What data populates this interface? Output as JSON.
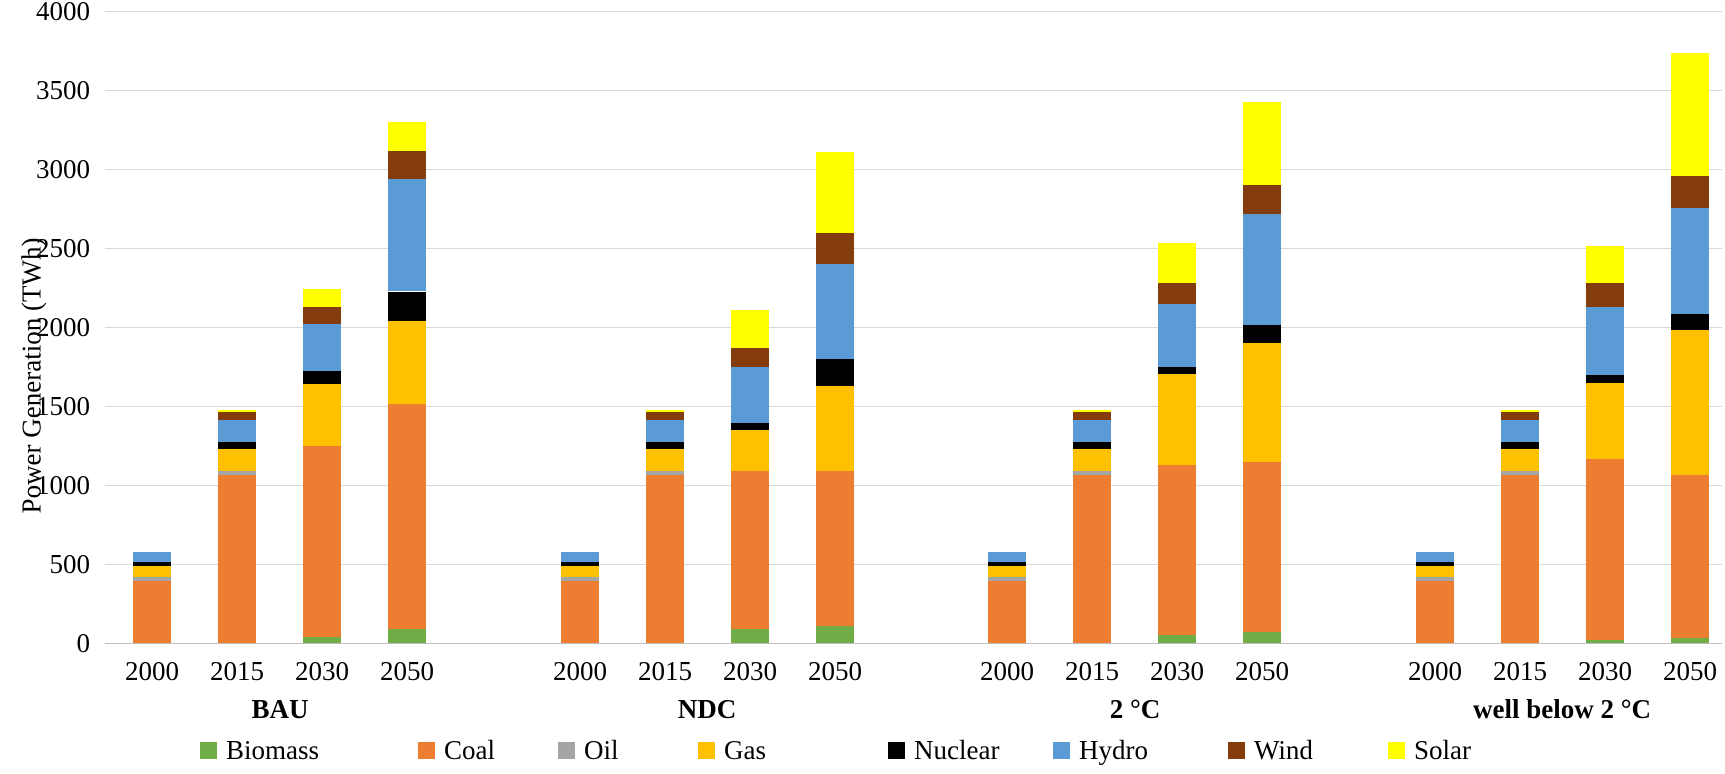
{
  "chart_data": {
    "type": "bar",
    "stacked": true,
    "title": "",
    "xlabel": "",
    "ylabel": "Power Generation (TWh)",
    "ylim": [
      0,
      4000
    ],
    "ytick_interval": 500,
    "yticks": [
      0,
      500,
      1000,
      1500,
      2000,
      2500,
      3000,
      3500,
      4000
    ],
    "grid": true,
    "legend_position": "bottom",
    "years": [
      "2000",
      "2015",
      "2030",
      "2050"
    ],
    "scenarios": [
      "BAU",
      "NDC",
      "2 °C",
      "well below 2  °C"
    ],
    "unit": "TWh",
    "series": [
      {
        "name": "Biomass",
        "color": "#70AD47",
        "values": {
          "BAU": [
            0,
            0,
            40,
            90
          ],
          "NDC": [
            0,
            0,
            90,
            110
          ],
          "2C": [
            0,
            0,
            50,
            70
          ],
          "WB2C": [
            0,
            0,
            20,
            35
          ]
        }
      },
      {
        "name": "Coal",
        "color": "#ED7D31",
        "values": {
          "BAU": [
            395,
            1065,
            1210,
            1420
          ],
          "NDC": [
            395,
            1065,
            1000,
            980
          ],
          "2C": [
            395,
            1065,
            1080,
            1075
          ],
          "WB2C": [
            395,
            1065,
            1145,
            1030
          ]
        }
      },
      {
        "name": "Oil",
        "color": "#A5A5A5",
        "values": {
          "BAU": [
            20,
            25,
            0,
            0
          ],
          "NDC": [
            20,
            25,
            0,
            0
          ],
          "2C": [
            20,
            25,
            0,
            0
          ],
          "WB2C": [
            20,
            25,
            0,
            0
          ]
        }
      },
      {
        "name": "Gas",
        "color": "#FFC000",
        "values": {
          "BAU": [
            70,
            140,
            390,
            530
          ],
          "NDC": [
            70,
            140,
            260,
            535
          ],
          "2C": [
            70,
            140,
            575,
            755
          ],
          "WB2C": [
            70,
            140,
            480,
            915
          ]
        }
      },
      {
        "name": "Nuclear",
        "color": "#000000",
        "values": {
          "BAU": [
            25,
            40,
            80,
            185
          ],
          "NDC": [
            25,
            40,
            45,
            175
          ],
          "2C": [
            25,
            40,
            45,
            115
          ],
          "WB2C": [
            25,
            40,
            50,
            100
          ]
        }
      },
      {
        "name": "Hydro",
        "color": "#5B9BD5",
        "values": {
          "BAU": [
            65,
            140,
            300,
            710
          ],
          "NDC": [
            65,
            140,
            355,
            600
          ],
          "2C": [
            65,
            140,
            395,
            700
          ],
          "WB2C": [
            65,
            140,
            435,
            675
          ]
        }
      },
      {
        "name": "Wind",
        "color": "#843C0C",
        "values": {
          "BAU": [
            0,
            50,
            110,
            180
          ],
          "NDC": [
            0,
            50,
            120,
            195
          ],
          "2C": [
            0,
            50,
            135,
            185
          ],
          "WB2C": [
            0,
            50,
            150,
            200
          ]
        }
      },
      {
        "name": "Solar",
        "color": "#FFFF00",
        "values": {
          "BAU": [
            0,
            15,
            110,
            180
          ],
          "NDC": [
            0,
            15,
            235,
            510
          ],
          "2C": [
            0,
            15,
            250,
            525
          ],
          "WB2C": [
            0,
            15,
            235,
            780
          ]
        }
      }
    ]
  }
}
